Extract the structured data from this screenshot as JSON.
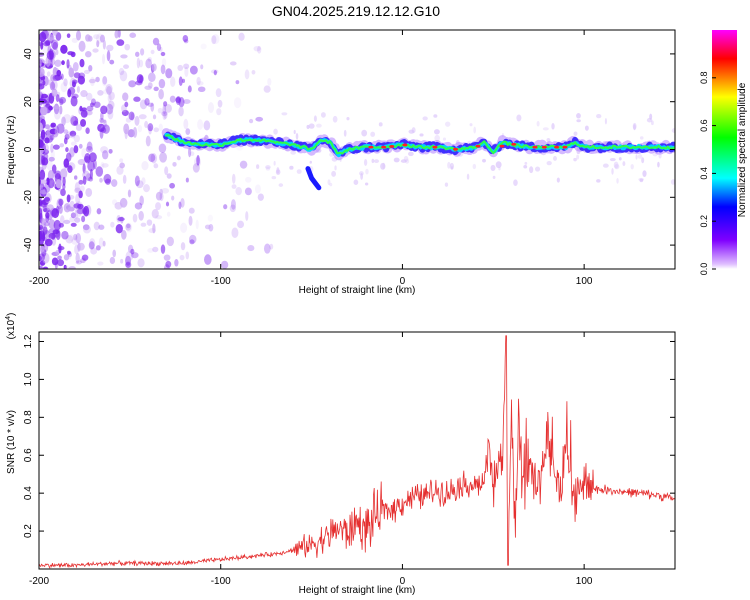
{
  "title": "GN04.2025.219.12.12.G10",
  "colors": {
    "snr_line": "#e53030",
    "ridge": "#ff2020",
    "scatter": "#7a22ee",
    "axis": "#000000"
  },
  "chart_data": [
    {
      "type": "heatmap",
      "xlabel": "Height of straight line (km)",
      "ylabel": "Frequency (Hz)",
      "xlim": [
        -200,
        150
      ],
      "ylim": [
        -50,
        50
      ],
      "x_ticks": [
        -200,
        -100,
        0,
        100
      ],
      "x_tick_labels": [
        "-200",
        "-100",
        "0",
        "100"
      ],
      "y_ticks": [
        -40,
        -20,
        0,
        20,
        40
      ],
      "y_tick_labels": [
        "-40",
        "-20",
        "0",
        "20",
        "40"
      ],
      "colorbar": {
        "label": "Normalized spectral amplitude",
        "range": [
          0,
          1
        ],
        "ticks": [
          "0.0",
          "0.2",
          "0.4",
          "0.6",
          "0.8"
        ],
        "colormap": [
          "#ff00ff",
          "#ff0000",
          "#ffff00",
          "#00ff00",
          "#00ffff",
          "#0000ff",
          "#8000ff",
          "#e0c0ff"
        ]
      },
      "ridge": {
        "x": [
          -130,
          -120,
          -110,
          -100,
          -90,
          -80,
          -70,
          -60,
          -50,
          -45,
          -40,
          -35,
          -30,
          -20,
          -10,
          0,
          10,
          20,
          30,
          40,
          45,
          50,
          55,
          60,
          70,
          80,
          90,
          95,
          100,
          110,
          120,
          130,
          140,
          150
        ],
        "y": [
          6,
          3,
          2,
          2,
          4,
          4,
          3,
          2,
          0,
          4,
          3,
          -2,
          0,
          1,
          1,
          2,
          1,
          1,
          0,
          1,
          3,
          -1,
          3,
          2,
          1,
          1,
          1,
          3,
          1,
          1,
          1,
          1,
          1,
          1
        ]
      }
    },
    {
      "type": "line",
      "xlabel": "Height of straight line (km)",
      "ylabel": "SNR (10 * v/v)",
      "y_scale_label": "(x10",
      "y_scale_exp": "4",
      "y_scale_close": ")",
      "xlim": [
        -200,
        150
      ],
      "ylim": [
        0,
        1.25
      ],
      "x_ticks": [
        -200,
        -100,
        0,
        100
      ],
      "x_tick_labels": [
        "-200",
        "-100",
        "0",
        "100"
      ],
      "y_ticks": [
        0.2,
        0.4,
        0.6,
        0.8,
        1.0,
        1.2
      ],
      "y_tick_labels": [
        "0.2",
        "0.4",
        "0.6",
        "0.8",
        "1.0",
        "1.2"
      ],
      "series": [
        {
          "x": [
            -200,
            -180,
            -160,
            -140,
            -120,
            -110,
            -100,
            -90,
            -80,
            -70,
            -60,
            -50,
            -40,
            -35,
            -30,
            -25,
            -20,
            -15,
            -10,
            -5,
            0,
            5,
            10,
            15,
            20,
            25,
            30,
            35,
            40,
            45,
            48,
            50,
            52,
            55,
            57,
            58,
            60,
            62,
            64,
            66,
            70,
            75,
            80,
            85,
            90,
            95,
            100,
            105,
            110,
            120,
            130,
            140,
            150
          ],
          "y": [
            0.02,
            0.02,
            0.03,
            0.03,
            0.03,
            0.04,
            0.05,
            0.06,
            0.07,
            0.08,
            0.1,
            0.13,
            0.18,
            0.22,
            0.18,
            0.25,
            0.2,
            0.28,
            0.3,
            0.32,
            0.35,
            0.38,
            0.38,
            0.4,
            0.42,
            0.4,
            0.44,
            0.45,
            0.44,
            0.46,
            0.6,
            0.4,
            0.55,
            0.5,
            1.23,
            0.03,
            0.88,
            0.2,
            0.85,
            0.4,
            0.5,
            0.45,
            0.72,
            0.4,
            0.6,
            0.35,
            0.45,
            0.42,
            0.42,
            0.41,
            0.4,
            0.39,
            0.37
          ]
        }
      ]
    }
  ]
}
